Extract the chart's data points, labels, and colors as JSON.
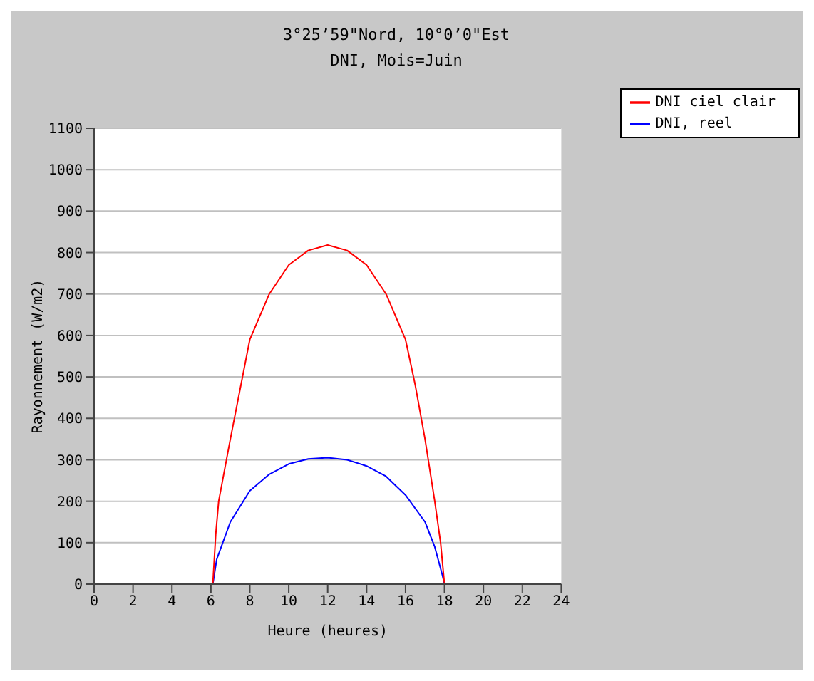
{
  "chart_data": {
    "type": "line",
    "title": "3°25’59\"Nord, 10°0’0\"Est",
    "subtitle": "DNI, Mois=Juin",
    "xlabel": "Heure (heures)",
    "ylabel": "Rayonnement (W/m2)",
    "xlim": [
      0,
      24
    ],
    "xticks": [
      0,
      2,
      4,
      6,
      8,
      10,
      12,
      14,
      16,
      18,
      20,
      22,
      24
    ],
    "ylim": [
      0,
      1100
    ],
    "yticks": [
      0,
      100,
      200,
      300,
      400,
      500,
      600,
      700,
      800,
      900,
      1000,
      1100
    ],
    "grid": "y",
    "legend": "top right",
    "marker": "none",
    "line_style": "solid",
    "series": [
      {
        "name": "DNI, reel",
        "color": "#0000ff",
        "x": [
          6.1,
          6.3,
          7,
          8,
          9,
          10,
          11,
          12,
          13,
          14,
          15,
          16,
          17,
          17.5,
          17.9,
          18
        ],
        "values": [
          0,
          60,
          150,
          225,
          265,
          290,
          302,
          305,
          300,
          285,
          260,
          215,
          150,
          90,
          20,
          0
        ]
      },
      {
        "name": "DNI ciel clair",
        "color": "#ff0000",
        "x": [
          6.1,
          6.25,
          6.4,
          7,
          7.5,
          8,
          9,
          10,
          11,
          12,
          13,
          14,
          15,
          16,
          16.5,
          17,
          17.5,
          17.8,
          18
        ],
        "values": [
          0,
          120,
          200,
          350,
          470,
          590,
          700,
          770,
          805,
          818,
          805,
          770,
          700,
          590,
          480,
          350,
          200,
          100,
          0
        ]
      }
    ]
  }
}
